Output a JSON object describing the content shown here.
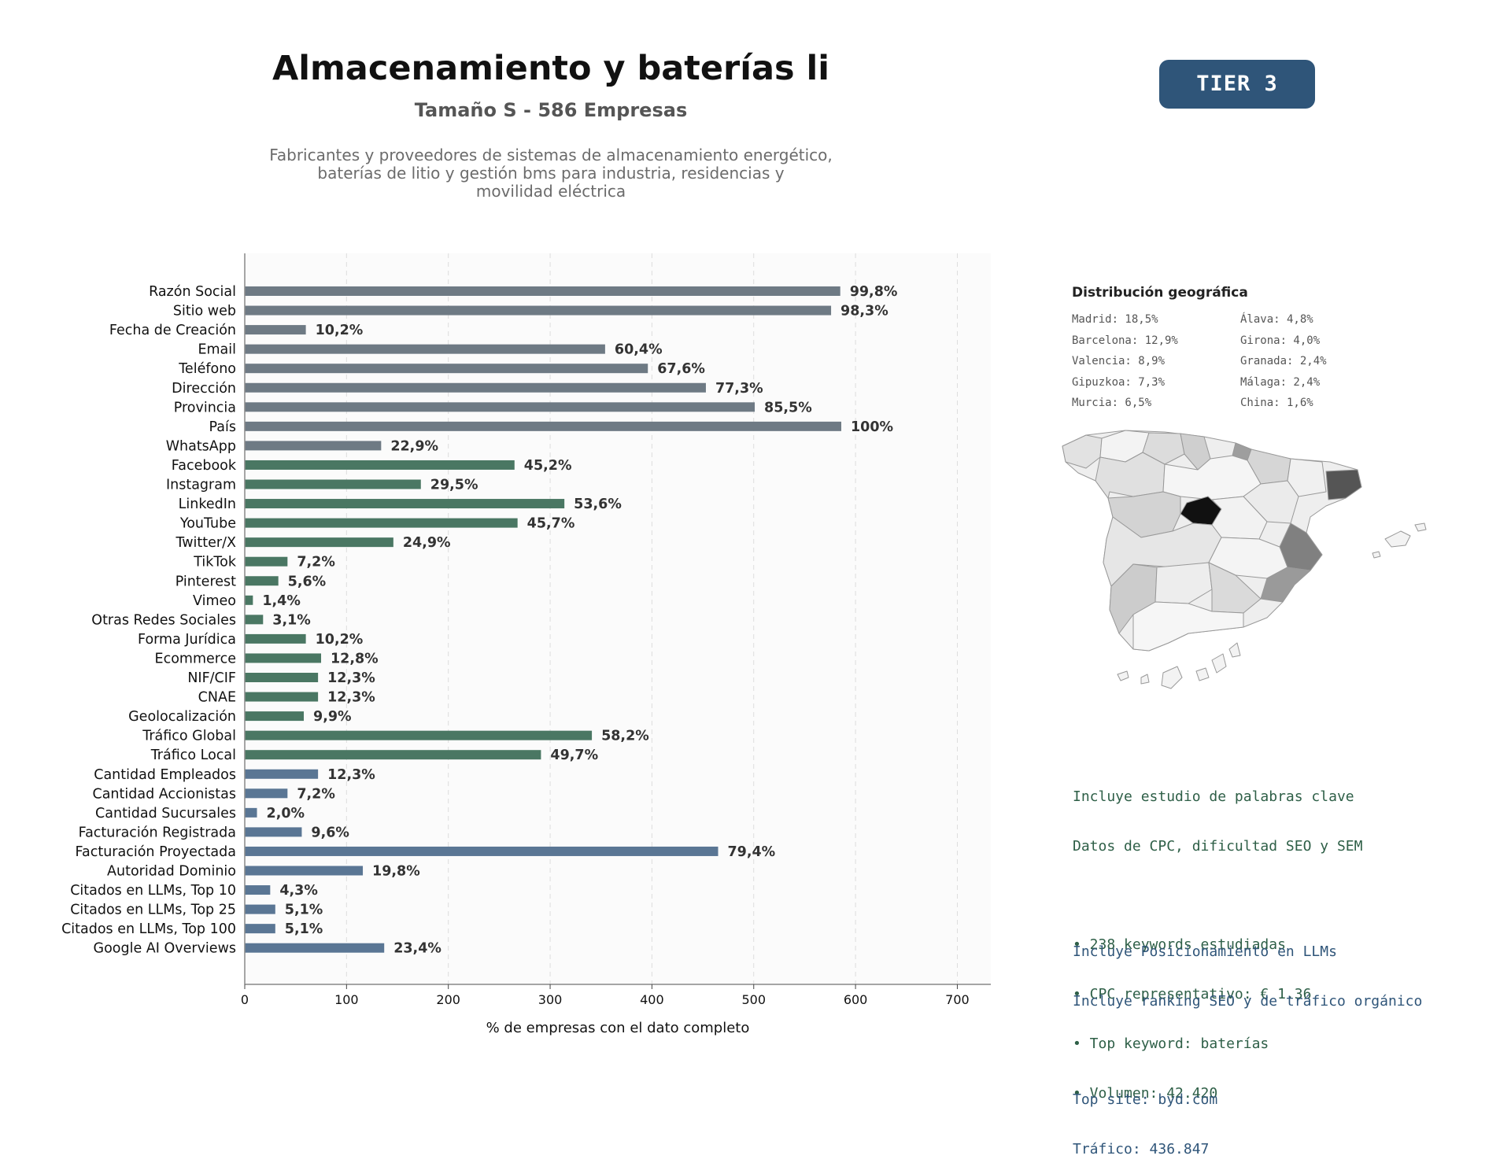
{
  "header": {
    "title": "Almacenamiento y baterías li",
    "subtitle": "Tamaño S - 586 Empresas",
    "description_lines": [
      "Fabricantes y proveedores de sistemas de almacenamiento energético,",
      "baterías de litio y gestión bms para industria, residencias y",
      "movilidad eléctrica"
    ],
    "tier_badge": "TIER 3"
  },
  "colors": {
    "gray_bar": "#6e7a84",
    "green_bar": "#4a7763",
    "blue_bar": "#5a7694",
    "badge": "#2f5579",
    "seo_text": "#2e5f47",
    "llm_text": "#2f5579"
  },
  "chart_data": {
    "type": "bar",
    "orientation": "horizontal",
    "xlabel": "% de empresas con el dato completo",
    "xlim": [
      0,
      733
    ],
    "xticks": [
      0,
      100,
      200,
      300,
      400,
      500,
      600,
      700
    ],
    "grid": "vertical dashed",
    "bars": [
      {
        "category": "Razón Social",
        "value": 585,
        "label": "99,8%",
        "group": "gray"
      },
      {
        "category": "Sitio web",
        "value": 576,
        "label": "98,3%",
        "group": "gray"
      },
      {
        "category": "Fecha de Creación",
        "value": 60,
        "label": "10,2%",
        "group": "gray"
      },
      {
        "category": "Email",
        "value": 354,
        "label": "60,4%",
        "group": "gray"
      },
      {
        "category": "Teléfono",
        "value": 396,
        "label": "67,6%",
        "group": "gray"
      },
      {
        "category": "Dirección",
        "value": 453,
        "label": "77,3%",
        "group": "gray"
      },
      {
        "category": "Provincia",
        "value": 501,
        "label": "85,5%",
        "group": "gray"
      },
      {
        "category": "País",
        "value": 586,
        "label": "100%",
        "group": "gray"
      },
      {
        "category": "WhatsApp",
        "value": 134,
        "label": "22,9%",
        "group": "gray"
      },
      {
        "category": "Facebook",
        "value": 265,
        "label": "45,2%",
        "group": "green"
      },
      {
        "category": "Instagram",
        "value": 173,
        "label": "29,5%",
        "group": "green"
      },
      {
        "category": "LinkedIn",
        "value": 314,
        "label": "53,6%",
        "group": "green"
      },
      {
        "category": "YouTube",
        "value": 268,
        "label": "45,7%",
        "group": "green"
      },
      {
        "category": "Twitter/X",
        "value": 146,
        "label": "24,9%",
        "group": "green"
      },
      {
        "category": "TikTok",
        "value": 42,
        "label": "7,2%",
        "group": "green"
      },
      {
        "category": "Pinterest",
        "value": 33,
        "label": "5,6%",
        "group": "green"
      },
      {
        "category": "Vimeo",
        "value": 8,
        "label": "1,4%",
        "group": "green"
      },
      {
        "category": "Otras Redes Sociales",
        "value": 18,
        "label": "3,1%",
        "group": "green"
      },
      {
        "category": "Forma Jurídica",
        "value": 60,
        "label": "10,2%",
        "group": "green"
      },
      {
        "category": "Ecommerce",
        "value": 75,
        "label": "12,8%",
        "group": "green"
      },
      {
        "category": "NIF/CIF",
        "value": 72,
        "label": "12,3%",
        "group": "green"
      },
      {
        "category": "CNAE",
        "value": 72,
        "label": "12,3%",
        "group": "green"
      },
      {
        "category": "Geolocalización",
        "value": 58,
        "label": "9,9%",
        "group": "green"
      },
      {
        "category": "Tráfico Global",
        "value": 341,
        "label": "58,2%",
        "group": "green"
      },
      {
        "category": "Tráfico Local",
        "value": 291,
        "label": "49,7%",
        "group": "green"
      },
      {
        "category": "Cantidad Empleados",
        "value": 72,
        "label": "12,3%",
        "group": "blue"
      },
      {
        "category": "Cantidad Accionistas",
        "value": 42,
        "label": "7,2%",
        "group": "blue"
      },
      {
        "category": "Cantidad Sucursales",
        "value": 12,
        "label": "2,0%",
        "group": "blue"
      },
      {
        "category": "Facturación Registrada",
        "value": 56,
        "label": "9,6%",
        "group": "blue"
      },
      {
        "category": "Facturación Proyectada",
        "value": 465,
        "label": "79,4%",
        "group": "blue"
      },
      {
        "category": "Autoridad Dominio",
        "value": 116,
        "label": "19,8%",
        "group": "blue"
      },
      {
        "category": "Citados en LLMs, Top 10",
        "value": 25,
        "label": "4,3%",
        "group": "blue"
      },
      {
        "category": "Citados en LLMs, Top 25",
        "value": 30,
        "label": "5,1%",
        "group": "blue"
      },
      {
        "category": "Citados en LLMs, Top 100",
        "value": 30,
        "label": "5,1%",
        "group": "blue"
      },
      {
        "category": "Google AI Overviews",
        "value": 137,
        "label": "23,4%",
        "group": "blue"
      }
    ]
  },
  "geo": {
    "title": "Distribución geográfica",
    "left": [
      "Madrid: 18,5%",
      "Barcelona: 12,9%",
      "Valencia: 8,9%",
      "Gipuzkoa: 7,3%",
      "Murcia: 6,5%"
    ],
    "right": [
      "Álava: 4,8%",
      "Girona: 4,0%",
      "Granada: 2,4%",
      "Málaga: 2,4%",
      "China: 1,6%"
    ]
  },
  "map": {
    "name": "Spain province choropleth",
    "shading": "darker = higher share",
    "highlight_regions": [
      "Madrid",
      "Barcelona",
      "Valencia",
      "Murcia"
    ]
  },
  "seo": {
    "lines": [
      "Incluye estudio de palabras clave",
      "Datos de CPC, dificultad SEO y SEM"
    ],
    "bullets": [
      "• 238 keywords estudiadas",
      "• CPC representativo: € 1.36",
      "• Top keyword: baterías",
      "• Volumen: 42.420"
    ]
  },
  "llm": {
    "lines": [
      "Incluye Posicionamiento en LLMs",
      "Incluye ranking SEO y de tráfico orgánico"
    ],
    "top_site": "Top site: byd.com",
    "traffic": "Tráfico: 436.847"
  }
}
